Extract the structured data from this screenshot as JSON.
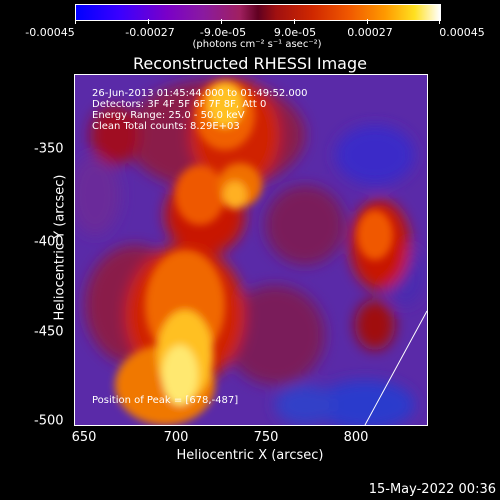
{
  "colorbar": {
    "ticks": [
      "-0.00045",
      "-0.00027",
      "-9.0e-05",
      "9.0e-05",
      "0.00027",
      "0.00045"
    ],
    "unit": "(photons cm⁻² s⁻¹ asec⁻²)"
  },
  "title": "Reconstructed RHESSI Image",
  "info": {
    "time": "26-Jun-2013 01:45:44.000 to 01:49:52.000",
    "detectors": "Detectors: 3F 4F 5F 6F 7F 8F, Att 0",
    "energy": "Energy Range: 25.0 - 50.0 keV",
    "clean": "Clean     Total counts: 8.29E+03",
    "peak": "Position of Peak = [678,-487]"
  },
  "axes": {
    "xticks": [
      "650",
      "700",
      "750",
      "800"
    ],
    "yticks": [
      "-350",
      "-400",
      "-450",
      "-500"
    ],
    "xlabel": "Heliocentric X (arcsec)",
    "ylabel": "Heliocentric Y (arcsec)"
  },
  "datestamp": "15-May-2022 00:36"
}
